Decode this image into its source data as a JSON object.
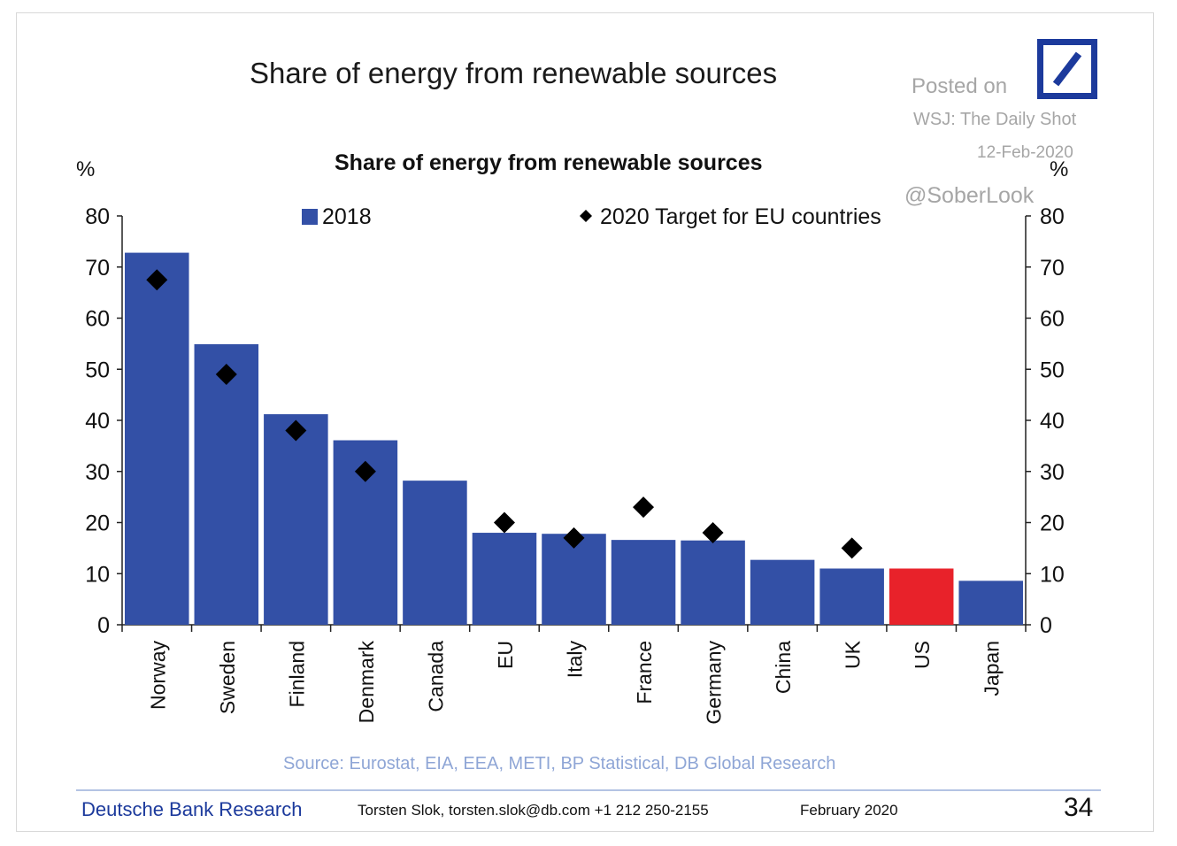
{
  "slide": {
    "title": "Share of energy from renewable sources",
    "watermark": {
      "posted": "Posted on",
      "outlet": "WSJ: The Daily Shot",
      "date": "12-Feb-2020",
      "handle": "@SoberLook"
    },
    "source": "Source: Eurostat, EIA, EEA, METI, BP Statistical, DB Global Research",
    "footer": {
      "brand": "Deutsche Bank Research",
      "contact": "Torsten Slok, torsten.slok@db.com  +1 212 250-2155",
      "date": "February 2020",
      "page": "34"
    },
    "logo_icon": "deutsche-bank-slash-logo"
  },
  "chart_data": {
    "type": "bar",
    "title": "Share of energy from renewable sources",
    "ylabel": "%",
    "ylabel_right": "%",
    "ylim": [
      0,
      80
    ],
    "yticks": [
      0,
      10,
      20,
      30,
      40,
      50,
      60,
      70,
      80
    ],
    "grid": false,
    "legend_position": "top",
    "categories": [
      "Norway",
      "Sweden",
      "Finland",
      "Denmark",
      "Canada",
      "EU",
      "Italy",
      "France",
      "Germany",
      "China",
      "UK",
      "US",
      "Japan"
    ],
    "series": [
      {
        "name": "2018",
        "kind": "bar",
        "color": "#3350a6",
        "values": [
          72.8,
          54.9,
          41.2,
          36.1,
          28.2,
          18.0,
          17.8,
          16.6,
          16.5,
          12.7,
          11.0,
          11.0,
          8.6
        ]
      },
      {
        "name": "2020 Target for EU countries",
        "kind": "marker",
        "marker": "diamond",
        "color": "#000000",
        "values": [
          67.5,
          49,
          38,
          30,
          null,
          20,
          17,
          23,
          18,
          null,
          15,
          null,
          null
        ]
      }
    ],
    "highlight": {
      "category": "US",
      "color": "#e8222a"
    }
  }
}
